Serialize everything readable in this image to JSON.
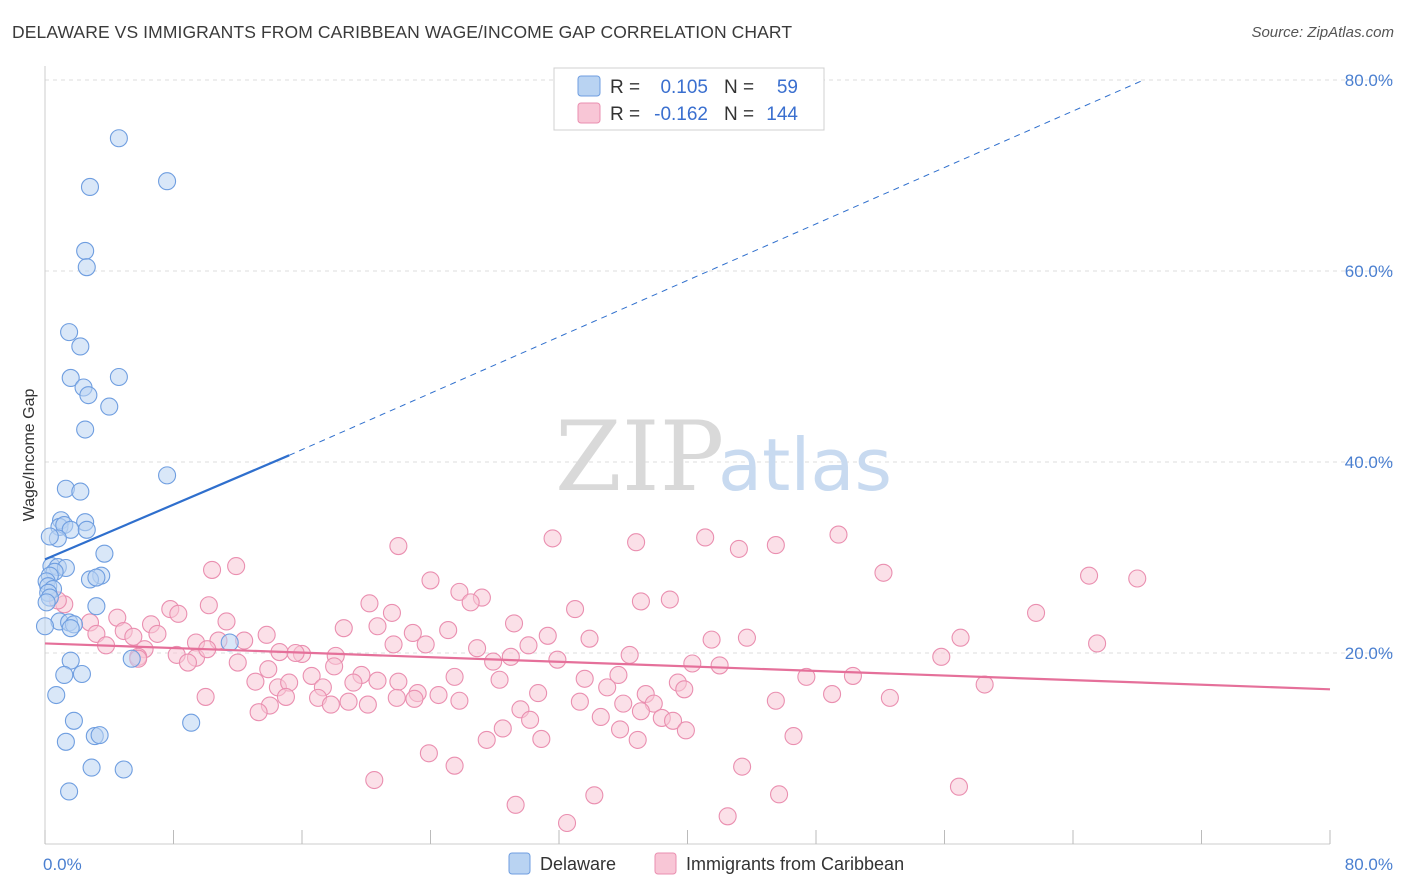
{
  "title": "DELAWARE VS IMMIGRANTS FROM CARIBBEAN WAGE/INCOME GAP CORRELATION CHART",
  "source": "Source: ZipAtlas.com",
  "watermark": {
    "zip": "ZIP",
    "atlas": "atlas"
  },
  "colors": {
    "blue_fill": "#b9d3f2",
    "blue_stroke": "#6f9ee0",
    "blue_line": "#2f6fcd",
    "pink_fill": "#f8c6d6",
    "pink_stroke": "#ea8fb0",
    "pink_line": "#e5709a",
    "grid": "#dddddd",
    "tick_label": "#4a7fd0"
  },
  "legend": {
    "rows": [
      {
        "r_label": "R =",
        "r_value": "0.105",
        "n_label": "N =",
        "n_value": "59"
      },
      {
        "r_label": "R =",
        "r_value": "-0.162",
        "n_label": "N =",
        "n_value": "144"
      }
    ]
  },
  "chart_data": {
    "type": "scatter",
    "title": "DELAWARE VS IMMIGRANTS FROM CARIBBEAN WAGE/INCOME GAP CORRELATION CHART",
    "xlabel": "",
    "ylabel": "Wage/Income Gap",
    "xlim": [
      0,
      80
    ],
    "ylim": [
      0,
      80
    ],
    "x_tick_labels": [
      "0.0%",
      "80.0%"
    ],
    "y_ticks": [
      20,
      40,
      60,
      80
    ],
    "y_tick_labels": [
      "20.0%",
      "40.0%",
      "60.0%",
      "80.0%"
    ],
    "grid": true,
    "legend_position": "top-center",
    "series": [
      {
        "name": "Delaware",
        "color": "#6f9ee0",
        "R": 0.105,
        "N": 59,
        "trend": {
          "x0": 0,
          "y0": 29.8,
          "x1": 15.2,
          "y1": 40.7,
          "dashed_to_x": 68.4,
          "dashed_to_y": 80
        },
        "points": [
          [
            4.6,
            73.9
          ],
          [
            7.6,
            69.4
          ],
          [
            2.8,
            68.8
          ],
          [
            2.5,
            62.1
          ],
          [
            2.6,
            60.4
          ],
          [
            1.5,
            53.6
          ],
          [
            2.2,
            52.1
          ],
          [
            1.6,
            48.8
          ],
          [
            4.6,
            48.9
          ],
          [
            2.4,
            47.8
          ],
          [
            2.7,
            47.0
          ],
          [
            4.0,
            45.8
          ],
          [
            2.5,
            43.4
          ],
          [
            7.6,
            38.6
          ],
          [
            1.3,
            37.2
          ],
          [
            2.2,
            36.9
          ],
          [
            1.0,
            33.9
          ],
          [
            0.9,
            33.2
          ],
          [
            2.5,
            33.7
          ],
          [
            1.2,
            33.4
          ],
          [
            1.6,
            32.9
          ],
          [
            2.6,
            32.9
          ],
          [
            0.8,
            32.0
          ],
          [
            0.3,
            32.2
          ],
          [
            3.7,
            30.4
          ],
          [
            0.4,
            29.1
          ],
          [
            0.8,
            29.0
          ],
          [
            1.3,
            28.9
          ],
          [
            0.6,
            28.5
          ],
          [
            0.3,
            28.1
          ],
          [
            0.1,
            27.5
          ],
          [
            0.2,
            27.0
          ],
          [
            0.5,
            26.7
          ],
          [
            3.5,
            28.1
          ],
          [
            2.8,
            27.7
          ],
          [
            3.2,
            27.9
          ],
          [
            0.2,
            26.3
          ],
          [
            0.3,
            25.8
          ],
          [
            0.1,
            25.3
          ],
          [
            3.2,
            24.9
          ],
          [
            0.9,
            23.3
          ],
          [
            1.5,
            23.2
          ],
          [
            1.8,
            23.0
          ],
          [
            0.0,
            22.8
          ],
          [
            1.6,
            22.6
          ],
          [
            11.5,
            21.1
          ],
          [
            1.6,
            19.2
          ],
          [
            5.4,
            19.4
          ],
          [
            1.2,
            17.7
          ],
          [
            2.3,
            17.8
          ],
          [
            0.7,
            15.6
          ],
          [
            1.8,
            12.9
          ],
          [
            9.1,
            12.7
          ],
          [
            3.1,
            11.3
          ],
          [
            3.4,
            11.4
          ],
          [
            1.3,
            10.7
          ],
          [
            2.9,
            8.0
          ],
          [
            4.9,
            7.8
          ],
          [
            1.5,
            5.5
          ]
        ]
      },
      {
        "name": "Immigrants from Caribbean",
        "color": "#ea8fb0",
        "R": -0.162,
        "N": 144,
        "trend": {
          "x0": 0,
          "y0": 21.0,
          "x1": 80,
          "y1": 16.2
        },
        "points": [
          [
            31.6,
            32.0
          ],
          [
            41.1,
            32.1
          ],
          [
            49.4,
            32.4
          ],
          [
            36.8,
            31.6
          ],
          [
            11.9,
            29.1
          ],
          [
            22.0,
            31.2
          ],
          [
            43.2,
            30.9
          ],
          [
            45.5,
            31.3
          ],
          [
            52.2,
            28.4
          ],
          [
            65.0,
            28.1
          ],
          [
            68.0,
            27.8
          ],
          [
            10.4,
            28.7
          ],
          [
            24.0,
            27.6
          ],
          [
            25.8,
            26.4
          ],
          [
            27.2,
            25.8
          ],
          [
            26.5,
            25.3
          ],
          [
            37.1,
            25.4
          ],
          [
            38.9,
            25.6
          ],
          [
            20.2,
            25.2
          ],
          [
            33.0,
            24.6
          ],
          [
            61.7,
            24.2
          ],
          [
            7.8,
            24.6
          ],
          [
            8.3,
            24.1
          ],
          [
            10.2,
            25.0
          ],
          [
            21.6,
            24.2
          ],
          [
            4.5,
            23.7
          ],
          [
            6.6,
            23.0
          ],
          [
            11.3,
            23.3
          ],
          [
            2.8,
            23.2
          ],
          [
            1.2,
            25.1
          ],
          [
            0.8,
            25.5
          ],
          [
            29.2,
            23.1
          ],
          [
            18.6,
            22.6
          ],
          [
            20.7,
            22.8
          ],
          [
            25.1,
            22.4
          ],
          [
            22.9,
            22.1
          ],
          [
            3.2,
            22.0
          ],
          [
            4.9,
            22.3
          ],
          [
            5.5,
            21.7
          ],
          [
            7.0,
            22.0
          ],
          [
            13.8,
            21.9
          ],
          [
            31.3,
            21.8
          ],
          [
            33.9,
            21.5
          ],
          [
            41.5,
            21.4
          ],
          [
            43.7,
            21.6
          ],
          [
            57.0,
            21.6
          ],
          [
            65.5,
            21.0
          ],
          [
            10.8,
            21.3
          ],
          [
            12.4,
            21.3
          ],
          [
            9.4,
            21.1
          ],
          [
            14.6,
            20.1
          ],
          [
            21.7,
            20.9
          ],
          [
            23.7,
            20.9
          ],
          [
            26.9,
            20.5
          ],
          [
            30.1,
            20.8
          ],
          [
            16.0,
            19.9
          ],
          [
            6.2,
            20.4
          ],
          [
            5.8,
            19.6
          ],
          [
            8.2,
            19.8
          ],
          [
            18.1,
            19.7
          ],
          [
            3.8,
            20.8
          ],
          [
            9.4,
            19.5
          ],
          [
            10.1,
            20.4
          ],
          [
            15.6,
            20.0
          ],
          [
            27.9,
            19.1
          ],
          [
            29.0,
            19.6
          ],
          [
            31.9,
            19.3
          ],
          [
            36.4,
            19.8
          ],
          [
            40.3,
            18.9
          ],
          [
            42.0,
            18.7
          ],
          [
            55.8,
            19.6
          ],
          [
            8.9,
            19.0
          ],
          [
            12.0,
            19.0
          ],
          [
            13.9,
            18.3
          ],
          [
            16.6,
            17.6
          ],
          [
            18.0,
            18.6
          ],
          [
            19.7,
            17.7
          ],
          [
            22.0,
            17.0
          ],
          [
            25.5,
            17.5
          ],
          [
            28.3,
            17.2
          ],
          [
            33.6,
            17.3
          ],
          [
            35.7,
            17.7
          ],
          [
            39.4,
            16.9
          ],
          [
            47.4,
            17.5
          ],
          [
            50.3,
            17.6
          ],
          [
            13.1,
            17.0
          ],
          [
            14.5,
            16.4
          ],
          [
            15.2,
            16.9
          ],
          [
            17.3,
            16.4
          ],
          [
            19.2,
            16.9
          ],
          [
            20.7,
            17.1
          ],
          [
            23.2,
            15.8
          ],
          [
            24.5,
            15.6
          ],
          [
            30.7,
            15.8
          ],
          [
            35.0,
            16.4
          ],
          [
            37.4,
            15.7
          ],
          [
            39.8,
            16.2
          ],
          [
            49.0,
            15.7
          ],
          [
            58.5,
            16.7
          ],
          [
            10.0,
            15.4
          ],
          [
            15.0,
            15.4
          ],
          [
            17.0,
            15.3
          ],
          [
            18.9,
            14.9
          ],
          [
            20.1,
            14.6
          ],
          [
            21.9,
            15.3
          ],
          [
            23.0,
            15.2
          ],
          [
            25.8,
            15.0
          ],
          [
            33.3,
            14.9
          ],
          [
            36.0,
            14.7
          ],
          [
            37.9,
            14.7
          ],
          [
            45.5,
            15.0
          ],
          [
            52.6,
            15.3
          ],
          [
            14.0,
            14.5
          ],
          [
            17.8,
            14.6
          ],
          [
            13.3,
            13.8
          ],
          [
            29.6,
            14.1
          ],
          [
            34.6,
            13.3
          ],
          [
            37.1,
            13.9
          ],
          [
            38.4,
            13.2
          ],
          [
            39.1,
            12.9
          ],
          [
            30.2,
            13.0
          ],
          [
            35.8,
            12.0
          ],
          [
            39.9,
            11.9
          ],
          [
            46.6,
            11.3
          ],
          [
            28.5,
            12.1
          ],
          [
            30.9,
            11.0
          ],
          [
            36.9,
            10.9
          ],
          [
            27.5,
            10.9
          ],
          [
            23.9,
            9.5
          ],
          [
            25.5,
            8.2
          ],
          [
            43.4,
            8.1
          ],
          [
            20.5,
            6.7
          ],
          [
            56.9,
            6.0
          ],
          [
            34.2,
            5.1
          ],
          [
            45.7,
            5.2
          ],
          [
            29.3,
            4.1
          ],
          [
            42.5,
            2.9
          ],
          [
            32.5,
            2.2
          ],
          [
            5.8,
            19.4
          ]
        ]
      }
    ]
  },
  "bottom_legend": [
    "Delaware",
    "Immigrants from Caribbean"
  ]
}
